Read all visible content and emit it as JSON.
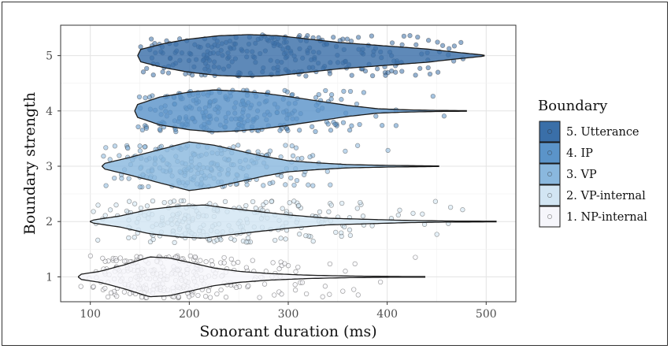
{
  "chart_data": {
    "type": "violin-jitter",
    "xlabel": "Sonorant duration (ms)",
    "ylabel": "Boundary strength",
    "xlim": [
      70,
      530
    ],
    "ylim": [
      0.55,
      5.55
    ],
    "x_ticks": [
      100,
      200,
      300,
      400,
      500
    ],
    "y_ticks": [
      1,
      2,
      3,
      4,
      5
    ],
    "grid": true,
    "legend_title": "Boundary",
    "legend_position": "right",
    "series": [
      {
        "name": "5. Utterance",
        "y": 5,
        "color": "#3a6fa8",
        "min": 148,
        "max": 498,
        "mode": 270,
        "n": 260,
        "profile": [
          [
            148,
            0.1
          ],
          [
            175,
            0.22
          ],
          [
            200,
            0.3
          ],
          [
            230,
            0.36
          ],
          [
            260,
            0.38
          ],
          [
            290,
            0.36
          ],
          [
            320,
            0.3
          ],
          [
            350,
            0.24
          ],
          [
            380,
            0.2
          ],
          [
            410,
            0.16
          ],
          [
            440,
            0.12
          ],
          [
            470,
            0.06
          ],
          [
            498,
            0.01
          ]
        ]
      },
      {
        "name": "4. IP",
        "y": 4,
        "color": "#5b94c9",
        "min": 145,
        "max": 480,
        "mode": 225,
        "n": 240,
        "profile": [
          [
            145,
            0.1
          ],
          [
            170,
            0.25
          ],
          [
            200,
            0.34
          ],
          [
            225,
            0.38
          ],
          [
            250,
            0.36
          ],
          [
            275,
            0.32
          ],
          [
            300,
            0.26
          ],
          [
            330,
            0.18
          ],
          [
            360,
            0.1
          ],
          [
            390,
            0.04
          ],
          [
            420,
            0.02
          ],
          [
            450,
            0.01
          ],
          [
            480,
            0.005
          ]
        ]
      },
      {
        "name": "3. VP",
        "y": 3,
        "color": "#8ab8de",
        "min": 112,
        "max": 452,
        "mode": 200,
        "n": 220,
        "profile": [
          [
            112,
            0.04
          ],
          [
            140,
            0.16
          ],
          [
            170,
            0.3
          ],
          [
            200,
            0.44
          ],
          [
            225,
            0.38
          ],
          [
            250,
            0.28
          ],
          [
            275,
            0.18
          ],
          [
            300,
            0.1
          ],
          [
            330,
            0.06
          ],
          [
            360,
            0.03
          ],
          [
            400,
            0.015
          ],
          [
            452,
            0.005
          ]
        ]
      },
      {
        "name": "2. VP-internal",
        "y": 2,
        "color": "#d2e5f3",
        "min": 100,
        "max": 510,
        "mode": 200,
        "n": 240,
        "profile": [
          [
            100,
            0.02
          ],
          [
            130,
            0.1
          ],
          [
            160,
            0.22
          ],
          [
            190,
            0.28
          ],
          [
            215,
            0.3
          ],
          [
            240,
            0.24
          ],
          [
            270,
            0.18
          ],
          [
            300,
            0.12
          ],
          [
            340,
            0.06
          ],
          [
            380,
            0.04
          ],
          [
            420,
            0.02
          ],
          [
            460,
            0.01
          ],
          [
            510,
            0.005
          ]
        ]
      },
      {
        "name": "1. NP-internal",
        "y": 1,
        "color": "#f6f6fb",
        "min": 88,
        "max": 438,
        "mode": 170,
        "n": 300,
        "profile": [
          [
            88,
            0.04
          ],
          [
            110,
            0.1
          ],
          [
            135,
            0.22
          ],
          [
            160,
            0.36
          ],
          [
            180,
            0.34
          ],
          [
            200,
            0.26
          ],
          [
            225,
            0.16
          ],
          [
            250,
            0.1
          ],
          [
            280,
            0.06
          ],
          [
            320,
            0.03
          ],
          [
            360,
            0.015
          ],
          [
            400,
            0.008
          ],
          [
            438,
            0.004
          ]
        ]
      }
    ]
  }
}
